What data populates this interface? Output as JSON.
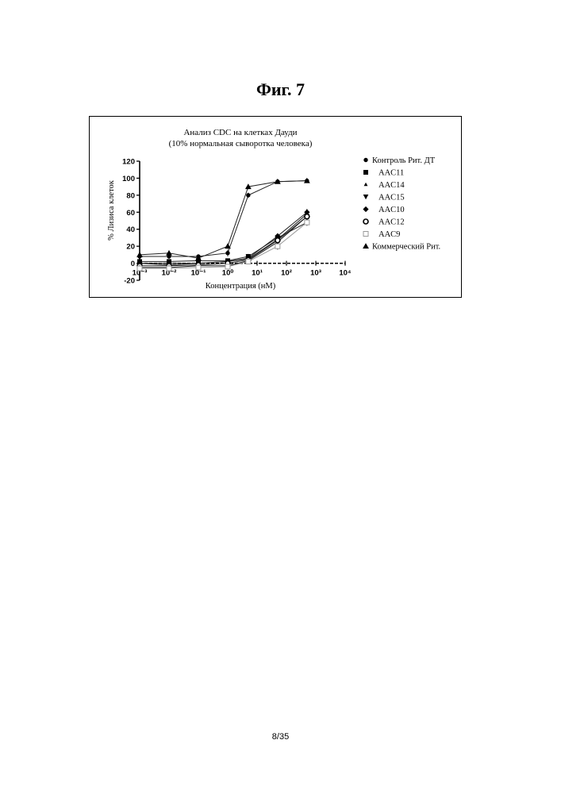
{
  "figure_label": "Фиг. 7",
  "page_number": "8/35",
  "chart_data": {
    "type": "scatter",
    "title": "Анализ CDC на клетках Дауди",
    "subtitle": "(10% нормальная сыворотка человека)",
    "xlabel": "Концентрация (нМ)",
    "ylabel": "% Лизиса клеток",
    "x_scale": "log",
    "xlim": [
      0.001,
      10000
    ],
    "ylim": [
      -20,
      120
    ],
    "y_ticks": [
      -20,
      0,
      20,
      40,
      60,
      80,
      100,
      120
    ],
    "x_tick_labels": [
      "10⁻³",
      "10⁻²",
      "10⁻¹",
      "10⁰",
      "10¹",
      "10²",
      "10³",
      "10⁴"
    ],
    "x_ticks": [
      0.001,
      0.01,
      0.1,
      1,
      10,
      100,
      1000,
      10000
    ],
    "legend_position": "right",
    "grid": false,
    "series": [
      {
        "name": "Контроль Рит. ДТ",
        "marker": "hexagon",
        "x": [
          0.001,
          0.01,
          0.1,
          1,
          5,
          50,
          500
        ],
        "y": [
          8,
          8,
          8,
          12,
          80,
          96,
          97
        ],
        "err": [
          15,
          3,
          2,
          4,
          3,
          2,
          2
        ]
      },
      {
        "name": "AAC11",
        "marker": "square",
        "x": [
          0.001,
          0.01,
          0.1,
          1,
          5,
          50,
          500
        ],
        "y": [
          2,
          2,
          3,
          3,
          8,
          30,
          48
        ],
        "err": [
          3,
          2,
          2,
          2,
          3,
          4,
          3
        ]
      },
      {
        "name": "AAC14",
        "marker": "triangle-small",
        "x": [
          0.001,
          0.01,
          0.1,
          1,
          5,
          50,
          500
        ],
        "y": [
          0,
          -2,
          0,
          2,
          5,
          28,
          58
        ],
        "err": [
          3,
          3,
          2,
          2,
          3,
          3,
          3
        ]
      },
      {
        "name": "AAC15",
        "marker": "triangle-down",
        "x": [
          0.001,
          0.01,
          0.1,
          1,
          5,
          50,
          500
        ],
        "y": [
          -5,
          -5,
          -3,
          -3,
          3,
          25,
          55
        ],
        "err": [
          4,
          4,
          3,
          3,
          3,
          4,
          4
        ]
      },
      {
        "name": "AAC10",
        "marker": "diamond",
        "x": [
          0.001,
          0.01,
          0.1,
          1,
          5,
          50,
          500
        ],
        "y": [
          0,
          0,
          0,
          2,
          6,
          32,
          60
        ],
        "err": [
          3,
          3,
          2,
          2,
          3,
          3,
          4
        ]
      },
      {
        "name": "AAC12",
        "marker": "circle-open",
        "x": [
          0.001,
          0.01,
          0.1,
          1,
          5,
          50,
          500
        ],
        "y": [
          -3,
          -3,
          -2,
          0,
          4,
          27,
          55
        ],
        "err": [
          3,
          3,
          3,
          2,
          3,
          3,
          4
        ]
      },
      {
        "name": "AAC9",
        "marker": "square-open",
        "x": [
          0.001,
          0.01,
          0.1,
          1,
          5,
          50,
          500
        ],
        "y": [
          -6,
          -6,
          -5,
          -4,
          2,
          20,
          48
        ],
        "err": [
          4,
          4,
          3,
          3,
          3,
          4,
          4
        ]
      },
      {
        "name": "Коммерческий Рит.",
        "marker": "triangle",
        "x": [
          0.001,
          0.01,
          0.1,
          1,
          5,
          50,
          500
        ],
        "y": [
          10,
          12,
          6,
          20,
          90,
          96,
          97
        ],
        "err": [
          8,
          3,
          2,
          3,
          3,
          2,
          2
        ]
      }
    ]
  }
}
